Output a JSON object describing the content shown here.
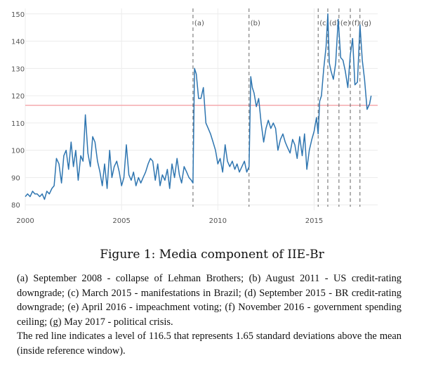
{
  "chart_data": {
    "type": "line",
    "title": "",
    "xlabel": "",
    "ylabel": "",
    "xlim": [
      2000.0,
      2018.3
    ],
    "ylim": [
      78,
      152
    ],
    "x_ticks": [
      2000,
      2005,
      2010,
      2015
    ],
    "y_ticks": [
      80,
      90,
      100,
      110,
      120,
      130,
      140,
      150
    ],
    "grid": true,
    "reference_line": {
      "value": 116.5,
      "color": "#f4a3a8"
    },
    "events": [
      {
        "label": "(a)",
        "x": 2008.71
      },
      {
        "label": "(b)",
        "x": 2011.62
      },
      {
        "label": "(c)",
        "x": 2015.21
      },
      {
        "label": "(d)",
        "x": 2015.71
      },
      {
        "label": "(e)",
        "x": 2016.29
      },
      {
        "label": "(f)",
        "x": 2016.88
      },
      {
        "label": "(g)",
        "x": 2017.38
      }
    ],
    "series": [
      {
        "color": "#2e75b0",
        "points": [
          [
            2000.0,
            83
          ],
          [
            2000.12,
            84
          ],
          [
            2000.25,
            83
          ],
          [
            2000.38,
            85
          ],
          [
            2000.5,
            84
          ],
          [
            2000.62,
            84
          ],
          [
            2000.75,
            83
          ],
          [
            2000.88,
            84
          ],
          [
            2001.0,
            82
          ],
          [
            2001.12,
            85
          ],
          [
            2001.25,
            84
          ],
          [
            2001.38,
            86
          ],
          [
            2001.5,
            87
          ],
          [
            2001.62,
            97
          ],
          [
            2001.75,
            95
          ],
          [
            2001.88,
            88
          ],
          [
            2002.0,
            98
          ],
          [
            2002.12,
            100
          ],
          [
            2002.25,
            93
          ],
          [
            2002.38,
            103
          ],
          [
            2002.5,
            94
          ],
          [
            2002.62,
            100
          ],
          [
            2002.75,
            89
          ],
          [
            2002.88,
            98
          ],
          [
            2003.0,
            96
          ],
          [
            2003.12,
            113
          ],
          [
            2003.25,
            99
          ],
          [
            2003.38,
            94
          ],
          [
            2003.5,
            105
          ],
          [
            2003.62,
            103
          ],
          [
            2003.75,
            96
          ],
          [
            2003.88,
            92
          ],
          [
            2004.0,
            87
          ],
          [
            2004.12,
            95
          ],
          [
            2004.25,
            86
          ],
          [
            2004.38,
            100
          ],
          [
            2004.5,
            90
          ],
          [
            2004.62,
            94
          ],
          [
            2004.75,
            96
          ],
          [
            2004.88,
            92
          ],
          [
            2005.0,
            87
          ],
          [
            2005.12,
            90
          ],
          [
            2005.25,
            102
          ],
          [
            2005.38,
            91
          ],
          [
            2005.5,
            89
          ],
          [
            2005.62,
            92
          ],
          [
            2005.75,
            87
          ],
          [
            2005.88,
            90
          ],
          [
            2006.0,
            88
          ],
          [
            2006.12,
            90
          ],
          [
            2006.25,
            92
          ],
          [
            2006.38,
            95
          ],
          [
            2006.5,
            97
          ],
          [
            2006.62,
            96
          ],
          [
            2006.75,
            89
          ],
          [
            2006.88,
            95
          ],
          [
            2007.0,
            87
          ],
          [
            2007.12,
            91
          ],
          [
            2007.25,
            89
          ],
          [
            2007.38,
            93
          ],
          [
            2007.5,
            86
          ],
          [
            2007.62,
            95
          ],
          [
            2007.75,
            90
          ],
          [
            2007.88,
            97
          ],
          [
            2008.0,
            91
          ],
          [
            2008.12,
            88
          ],
          [
            2008.25,
            94
          ],
          [
            2008.38,
            92
          ],
          [
            2008.5,
            90
          ],
          [
            2008.62,
            89
          ],
          [
            2008.71,
            88
          ],
          [
            2008.79,
            130
          ],
          [
            2008.88,
            128
          ],
          [
            2009.0,
            119
          ],
          [
            2009.12,
            119
          ],
          [
            2009.25,
            123
          ],
          [
            2009.38,
            110
          ],
          [
            2009.5,
            108
          ],
          [
            2009.62,
            106
          ],
          [
            2009.75,
            103
          ],
          [
            2009.88,
            100
          ],
          [
            2010.0,
            95
          ],
          [
            2010.12,
            97
          ],
          [
            2010.25,
            92
          ],
          [
            2010.38,
            102
          ],
          [
            2010.5,
            96
          ],
          [
            2010.62,
            94
          ],
          [
            2010.75,
            96
          ],
          [
            2010.88,
            93
          ],
          [
            2011.0,
            95
          ],
          [
            2011.12,
            92
          ],
          [
            2011.25,
            94
          ],
          [
            2011.38,
            96
          ],
          [
            2011.5,
            92
          ],
          [
            2011.62,
            94
          ],
          [
            2011.71,
            127
          ],
          [
            2011.79,
            123
          ],
          [
            2011.88,
            121
          ],
          [
            2012.0,
            116
          ],
          [
            2012.12,
            119
          ],
          [
            2012.25,
            110
          ],
          [
            2012.38,
            103
          ],
          [
            2012.5,
            108
          ],
          [
            2012.62,
            111
          ],
          [
            2012.75,
            108
          ],
          [
            2012.88,
            110
          ],
          [
            2013.0,
            108
          ],
          [
            2013.12,
            100
          ],
          [
            2013.25,
            104
          ],
          [
            2013.38,
            106
          ],
          [
            2013.5,
            103
          ],
          [
            2013.62,
            101
          ],
          [
            2013.75,
            99
          ],
          [
            2013.88,
            104
          ],
          [
            2014.0,
            102
          ],
          [
            2014.12,
            97
          ],
          [
            2014.25,
            105
          ],
          [
            2014.38,
            98
          ],
          [
            2014.5,
            106
          ],
          [
            2014.62,
            93
          ],
          [
            2014.75,
            100
          ],
          [
            2014.88,
            104
          ],
          [
            2015.0,
            107
          ],
          [
            2015.12,
            112
          ],
          [
            2015.21,
            106
          ],
          [
            2015.29,
            118
          ],
          [
            2015.38,
            120
          ],
          [
            2015.5,
            130
          ],
          [
            2015.62,
            138
          ],
          [
            2015.71,
            150
          ],
          [
            2015.79,
            132
          ],
          [
            2015.88,
            129
          ],
          [
            2016.0,
            126
          ],
          [
            2016.12,
            132
          ],
          [
            2016.25,
            148
          ],
          [
            2016.38,
            134
          ],
          [
            2016.5,
            133
          ],
          [
            2016.62,
            129
          ],
          [
            2016.75,
            123
          ],
          [
            2016.88,
            135
          ],
          [
            2017.0,
            141
          ],
          [
            2017.12,
            124
          ],
          [
            2017.25,
            125
          ],
          [
            2017.38,
            146
          ],
          [
            2017.5,
            133
          ],
          [
            2017.62,
            126
          ],
          [
            2017.75,
            115
          ],
          [
            2017.88,
            117
          ],
          [
            2017.96,
            120
          ]
        ]
      }
    ]
  },
  "caption": "Figure 1: Media component of IIE-Br",
  "notes": [
    "(a) September 2008 - collapse of Lehman Brothers; (b) August 2011 - US credit-rating downgrade; (c) March 2015 - manifestations in Brazil; (d) September 2015 - BR credit-rating downgrade; (e) April 2016 - impeachment voting; (f) November 2016 - government spending ceiling; (g) May 2017 - political crisis.",
    "The red line indicates a level of 116.5 that represents 1.65 standard deviations above the mean (inside reference window)."
  ]
}
